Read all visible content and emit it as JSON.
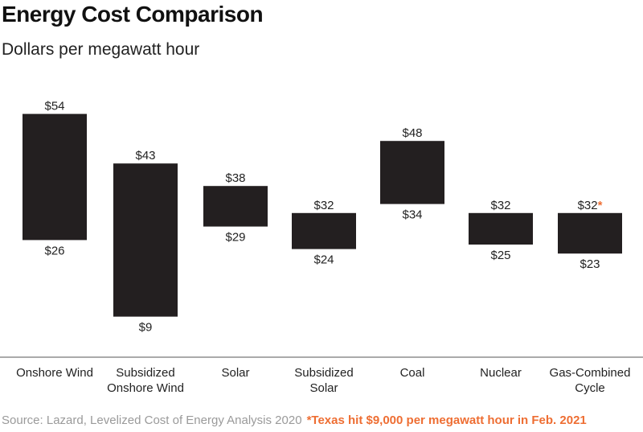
{
  "title": "Energy Cost Comparison",
  "subtitle": "Dollars per megawatt hour",
  "footer": {
    "source": "Source: Lazard, Levelized Cost of Energy Analysis 2020",
    "note": "*Texas hit $9,000 per megawatt hour in Feb. 2021"
  },
  "colors": {
    "bar": "#231f20",
    "accent": "#ee6e33",
    "axis": "#555555",
    "text": "#222222"
  },
  "chart_data": {
    "type": "bar",
    "subtype": "floating-range",
    "title": "Energy Cost Comparison",
    "subtitle": "Dollars per megawatt hour",
    "categories": [
      [
        "Onshore Wind"
      ],
      [
        "Subsidized",
        "Onshore Wind"
      ],
      [
        "Solar"
      ],
      [
        "Subsidized",
        "Solar"
      ],
      [
        "Coal"
      ],
      [
        "Nuclear"
      ],
      [
        "Gas-Combined",
        "Cycle"
      ]
    ],
    "high": [
      54,
      43,
      38,
      32,
      48,
      32,
      32
    ],
    "low": [
      26,
      9,
      29,
      24,
      34,
      25,
      23
    ],
    "high_labels": [
      "$54",
      "$43",
      "$38",
      "$32",
      "$48",
      "$32",
      "$32"
    ],
    "low_labels": [
      "$26",
      "$9",
      "$29",
      "$24",
      "$34",
      "$25",
      "$23"
    ],
    "high_marks": [
      "",
      "",
      "",
      "",
      "",
      "",
      "*"
    ],
    "ylim": [
      0,
      60
    ],
    "grid": false,
    "legend": "none"
  }
}
